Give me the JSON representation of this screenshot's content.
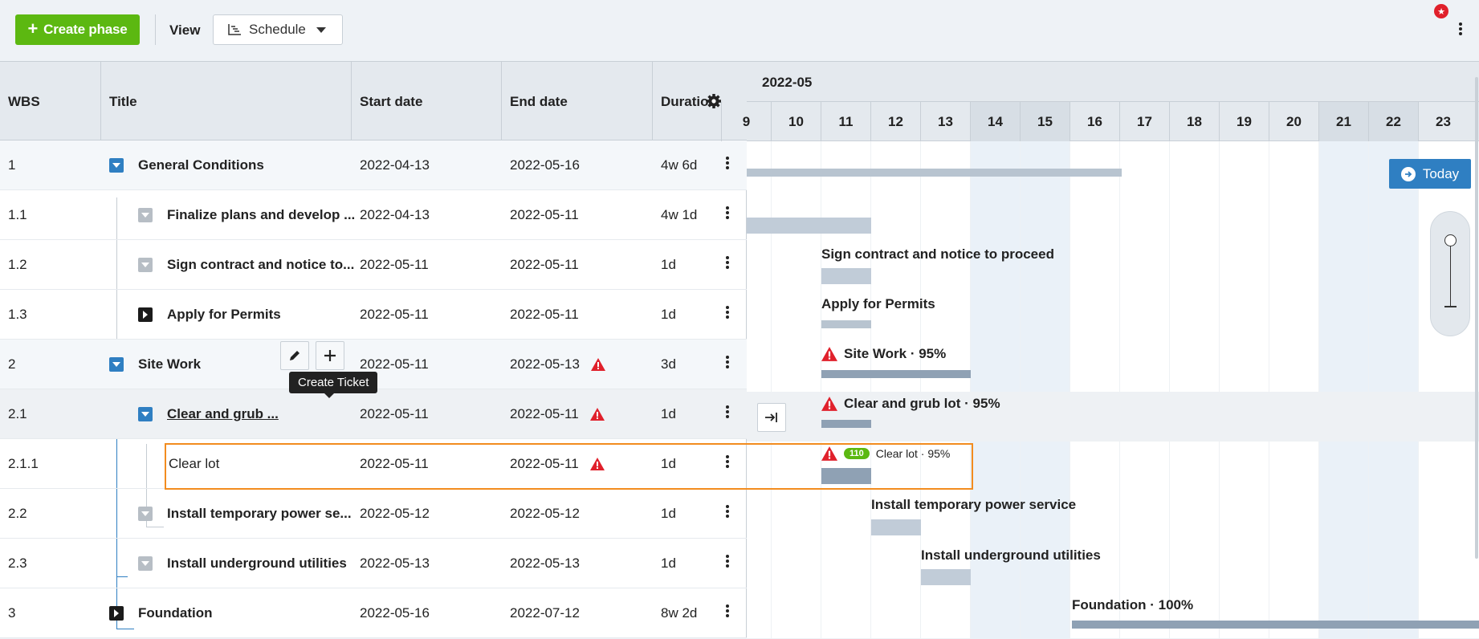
{
  "toolbar": {
    "create_label": "Create phase",
    "view_label": "View",
    "view_value": "Schedule"
  },
  "grid": {
    "columns": [
      "WBS",
      "Title",
      "Start date",
      "End date",
      "Duration"
    ],
    "rows": [
      {
        "wbs": "1",
        "title": "General Conditions",
        "start": "2022-04-13",
        "end": "2022-05-16",
        "dur": "4w 6d"
      },
      {
        "wbs": "1.1",
        "title": "Finalize plans and develop ...",
        "start": "2022-04-13",
        "end": "2022-05-11",
        "dur": "4w 1d"
      },
      {
        "wbs": "1.2",
        "title": "Sign contract and notice to...",
        "start": "2022-05-11",
        "end": "2022-05-11",
        "dur": "1d"
      },
      {
        "wbs": "1.3",
        "title": "Apply for Permits",
        "start": "2022-05-11",
        "end": "2022-05-11",
        "dur": "1d"
      },
      {
        "wbs": "2",
        "title": "Site Work",
        "start": "2022-05-11",
        "end": "2022-05-13",
        "dur": "3d"
      },
      {
        "wbs": "2.1",
        "title": "Clear and grub ...",
        "start": "2022-05-11",
        "end": "2022-05-11",
        "dur": "1d"
      },
      {
        "wbs": "2.1.1",
        "title": "Clear lot",
        "start": "2022-05-11",
        "end": "2022-05-11",
        "dur": "1d"
      },
      {
        "wbs": "2.2",
        "title": "Install temporary power se...",
        "start": "2022-05-12",
        "end": "2022-05-12",
        "dur": "1d"
      },
      {
        "wbs": "2.3",
        "title": "Install underground utilities",
        "start": "2022-05-13",
        "end": "2022-05-13",
        "dur": "1d"
      },
      {
        "wbs": "3",
        "title": "Foundation",
        "start": "2022-05-16",
        "end": "2022-07-12",
        "dur": "8w 2d"
      }
    ],
    "tooltip": "Create Ticket"
  },
  "gantt": {
    "month": "2022-05",
    "days": [
      "9",
      "10",
      "11",
      "12",
      "13",
      "14",
      "15",
      "16",
      "17",
      "18",
      "19",
      "20",
      "21",
      "22",
      "23"
    ],
    "labels": {
      "sign": "Sign contract and notice to proceed",
      "permits": "Apply for Permits",
      "sitework": "Site Work · 95%",
      "cleargrub": "Clear and grub lot · 95%",
      "clearlot": "Clear lot · 95%",
      "badge": "110",
      "power": "Install temporary power service",
      "utilities": "Install underground utilities",
      "foundation": "Foundation · 100%"
    },
    "today_label": "Today"
  },
  "colors": {
    "accent": "#5cb811",
    "primary": "#2f7fc2",
    "warning": "#e0202b",
    "selection": "#f28c1f"
  }
}
